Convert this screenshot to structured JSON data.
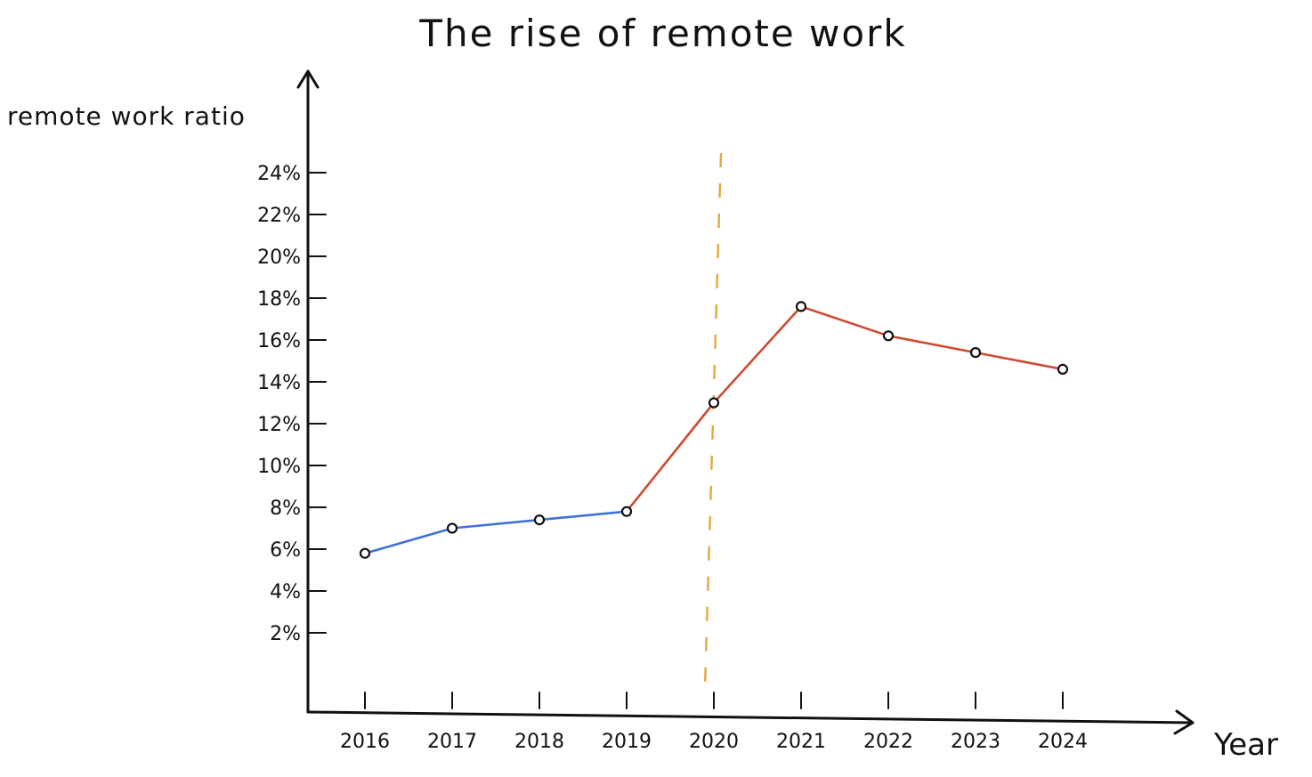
{
  "chart_data": {
    "type": "line",
    "title": "The rise of remote work",
    "xlabel": "Year",
    "ylabel": "remote work ratio",
    "x": [
      "2016",
      "2017",
      "2018",
      "2019",
      "2020",
      "2021",
      "2022",
      "2023",
      "2024"
    ],
    "y_ticks": [
      "2%",
      "4%",
      "6%",
      "8%",
      "10%",
      "12%",
      "14%",
      "16%",
      "18%",
      "20%",
      "22%",
      "24%"
    ],
    "ylim": [
      0,
      24
    ],
    "grid": false,
    "legend": "none",
    "series": [
      {
        "color": "#3f72d8",
        "points": [
          {
            "x": "2016",
            "y": 5.8
          },
          {
            "x": "2017",
            "y": 7.0
          },
          {
            "x": "2018",
            "y": 7.4
          },
          {
            "x": "2019",
            "y": 7.8
          }
        ]
      },
      {
        "color": "#cf4b33",
        "points": [
          {
            "x": "2019",
            "y": 7.8
          },
          {
            "x": "2020",
            "y": 13.0
          },
          {
            "x": "2021",
            "y": 17.6
          },
          {
            "x": "2022",
            "y": 16.2
          },
          {
            "x": "2023",
            "y": 15.4
          },
          {
            "x": "2024",
            "y": 14.6
          }
        ]
      }
    ],
    "annotations": [
      {
        "type": "vertical-dashed-line",
        "x": "2020",
        "color": "#e2a83f"
      }
    ]
  }
}
